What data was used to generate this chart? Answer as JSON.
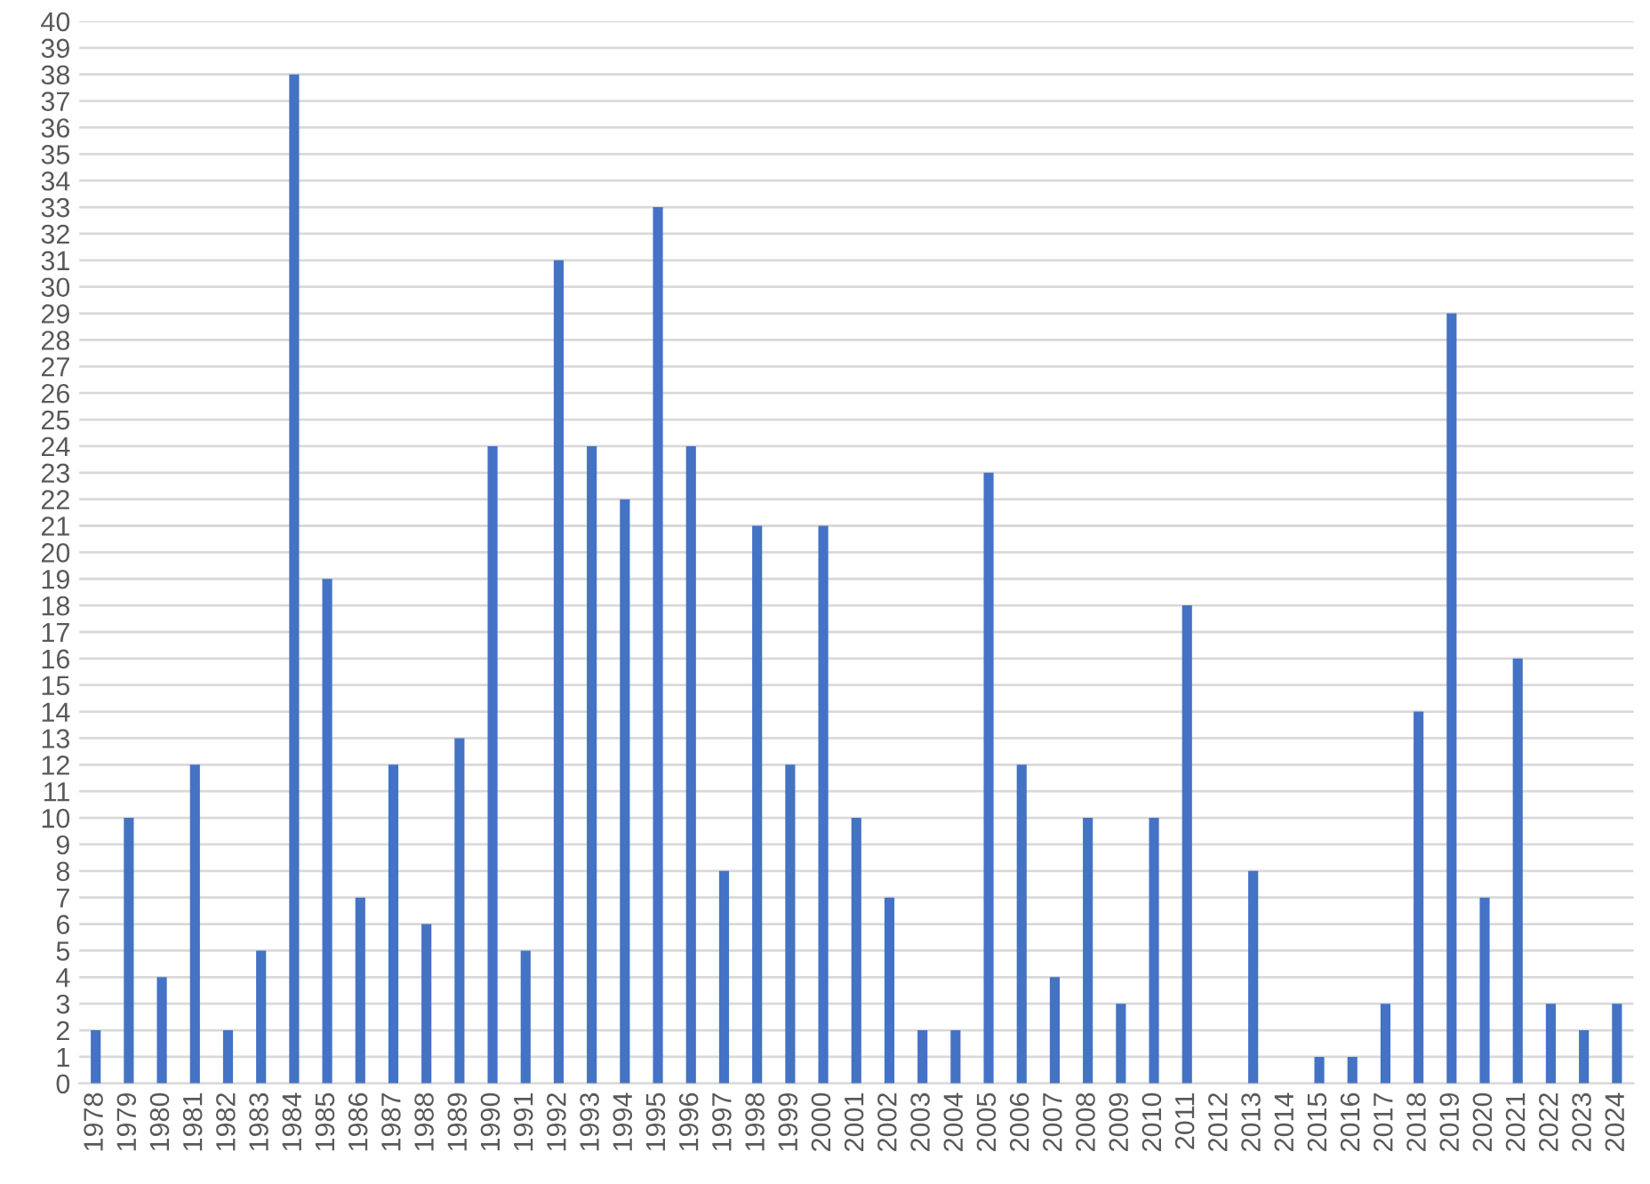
{
  "chart_data": {
    "type": "bar",
    "color": "#4472c4",
    "categories": [
      "1978",
      "1979",
      "1980",
      "1981",
      "1982",
      "1983",
      "1984",
      "1985",
      "1986",
      "1987",
      "1988",
      "1989",
      "1990",
      "1991",
      "1992",
      "1993",
      "1994",
      "1995",
      "1996",
      "1997",
      "1998",
      "1999",
      "2000",
      "2001",
      "2002",
      "2003",
      "2004",
      "2005",
      "2006",
      "2007",
      "2008",
      "2009",
      "2010",
      "2011",
      "2012",
      "2013",
      "2014",
      "2015",
      "2016",
      "2017",
      "2018",
      "2019",
      "2020",
      "2021",
      "2022",
      "2023",
      "2024"
    ],
    "values": [
      2,
      10,
      4,
      12,
      2,
      5,
      38,
      19,
      7,
      12,
      6,
      13,
      24,
      5,
      31,
      24,
      22,
      33,
      24,
      8,
      21,
      12,
      21,
      10,
      7,
      2,
      2,
      23,
      12,
      4,
      10,
      3,
      10,
      18,
      0,
      8,
      0,
      1,
      1,
      3,
      14,
      29,
      7,
      16,
      3,
      2,
      3
    ],
    "ylim": [
      0,
      40
    ],
    "yticks": [
      0,
      1,
      2,
      3,
      4,
      5,
      6,
      7,
      8,
      9,
      10,
      11,
      12,
      13,
      14,
      15,
      16,
      17,
      18,
      19,
      20,
      21,
      22,
      23,
      24,
      25,
      26,
      27,
      28,
      29,
      30,
      31,
      32,
      33,
      34,
      35,
      36,
      37,
      38,
      39,
      40
    ],
    "grid": "y"
  }
}
